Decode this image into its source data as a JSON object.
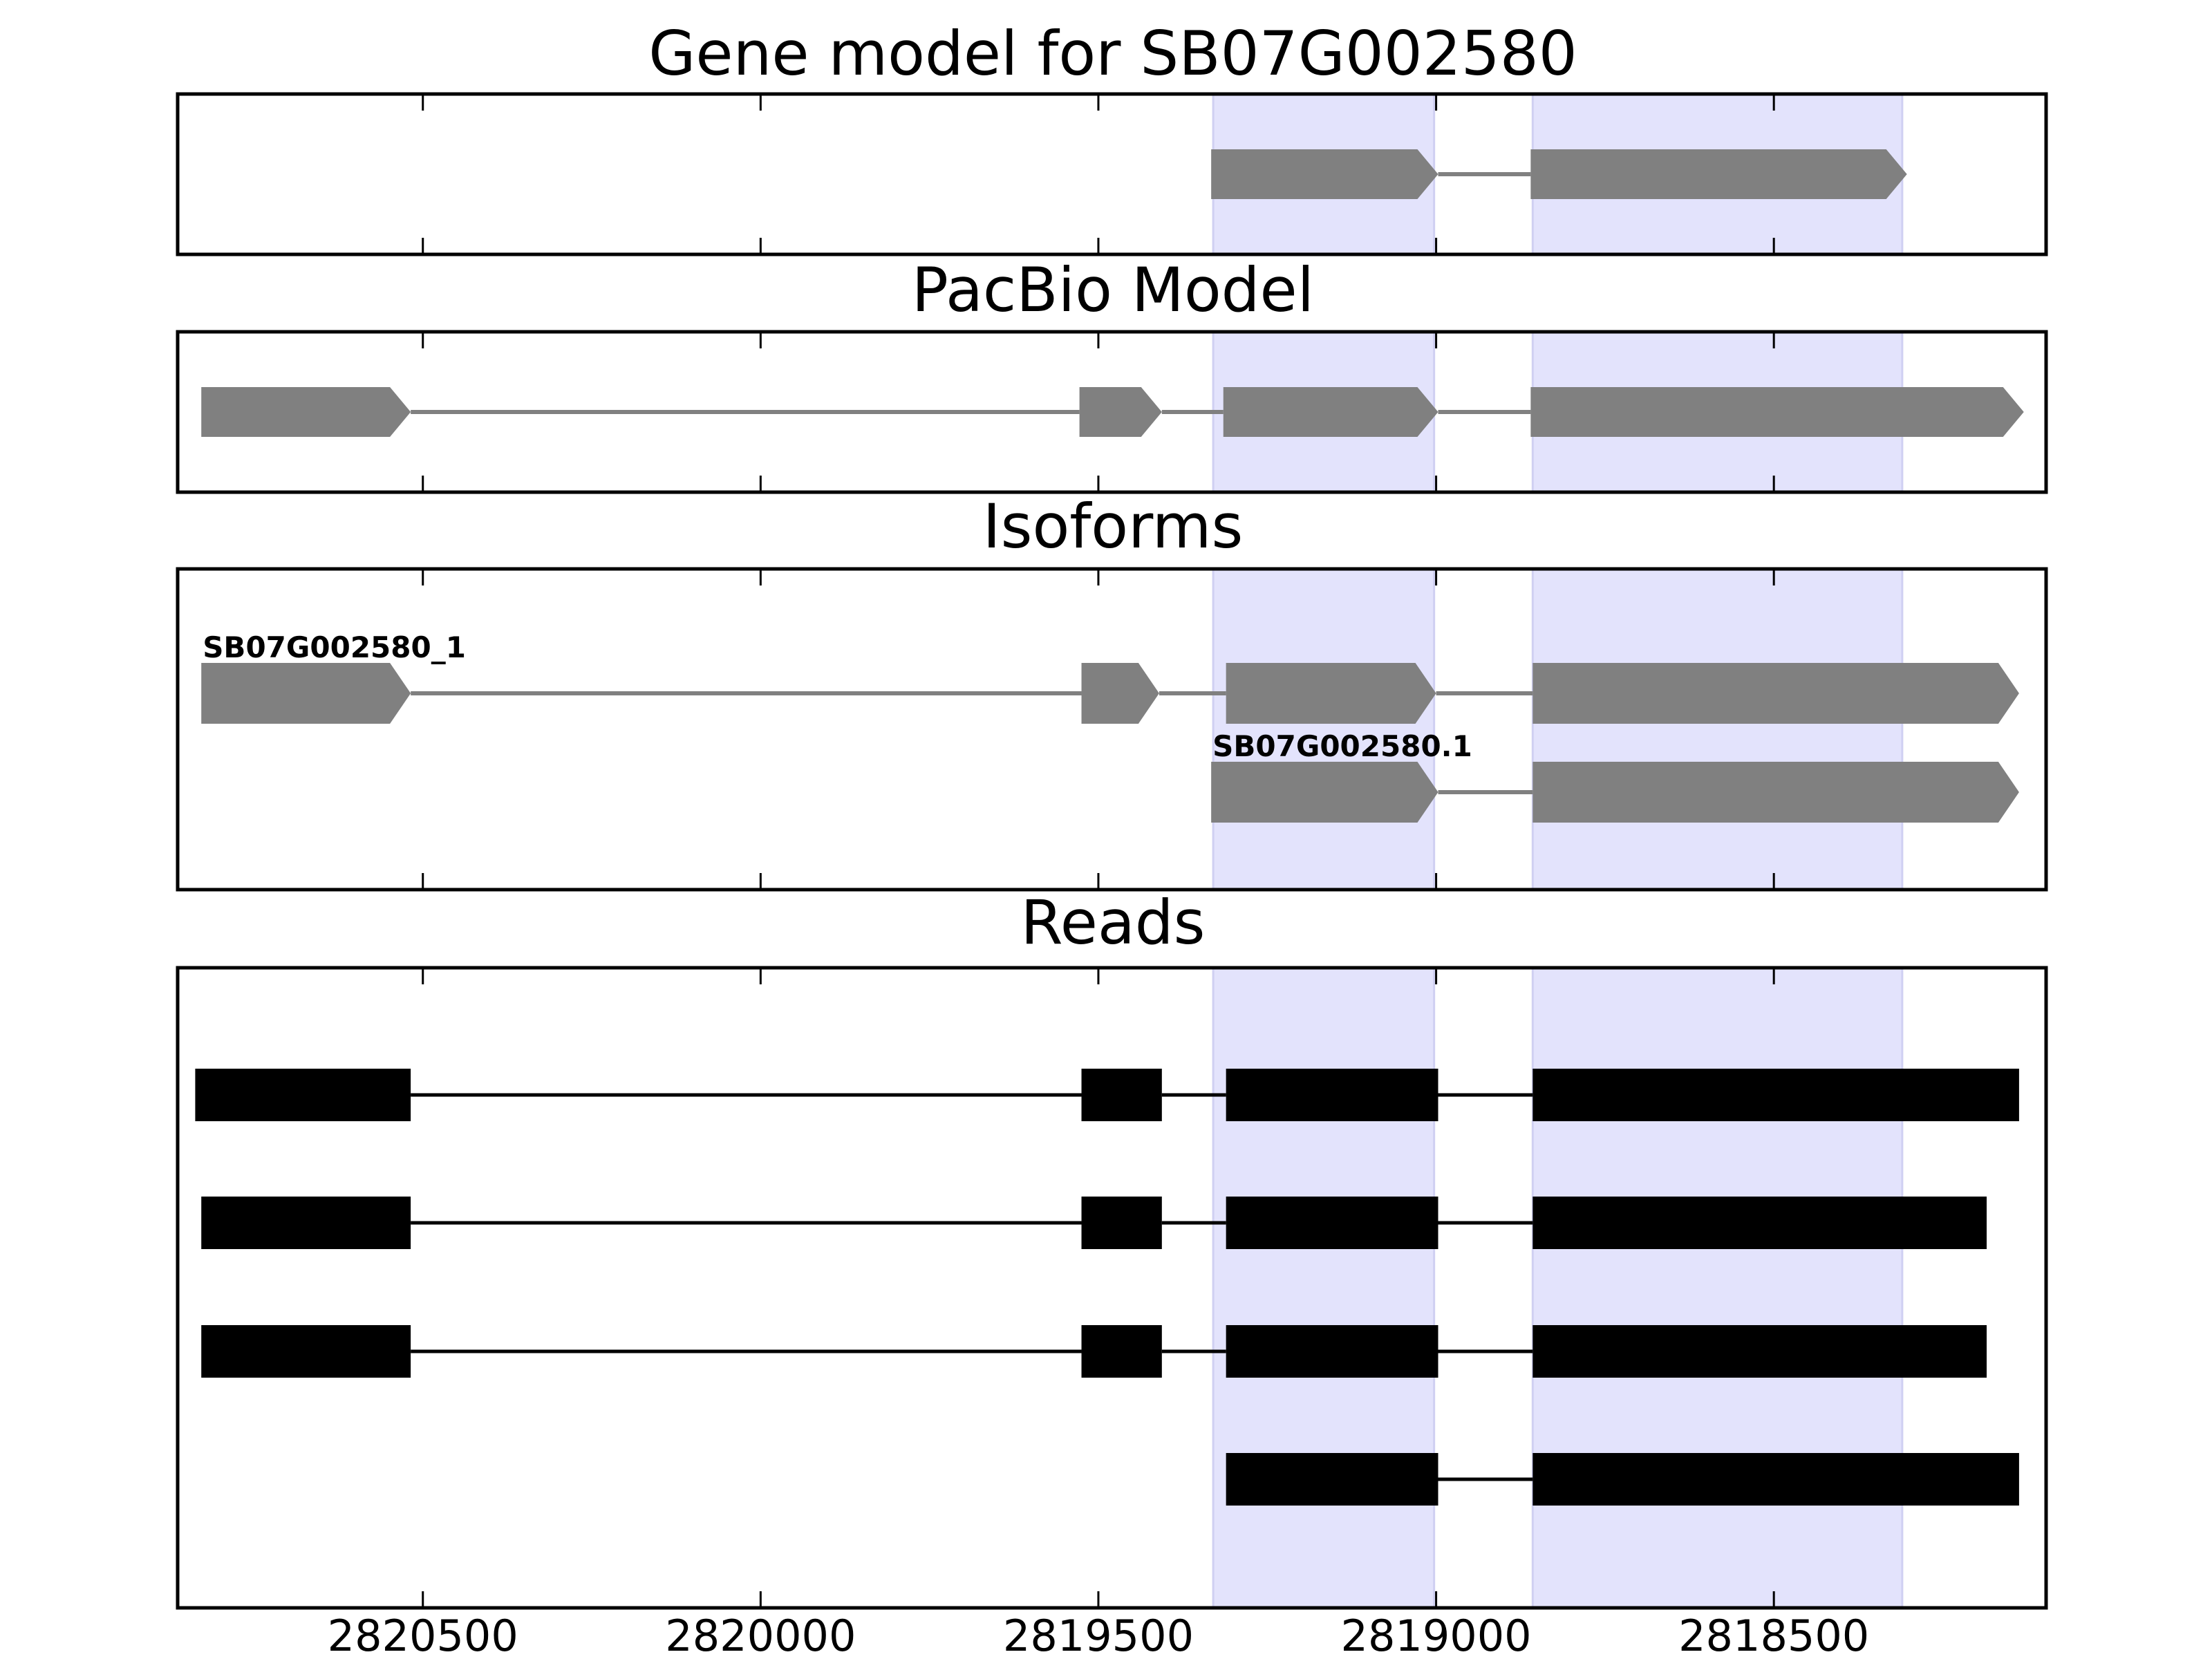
{
  "chart_data": {
    "type": "gene_track",
    "x_axis": {
      "ticks": [
        2820500,
        2820000,
        2819500,
        2819000,
        2818500
      ],
      "tick_labels": [
        "2820500",
        "2820000",
        "2819500",
        "2819000",
        "2818500"
      ],
      "xlim": [
        2820863,
        2818097
      ],
      "reversed": true
    },
    "highlight_regions": [
      [
        2819330,
        2819003
      ],
      [
        2818857,
        2818310
      ]
    ],
    "highlight_color": "#e3e3fc",
    "feature_color": "#808080",
    "read_color": "#000000",
    "panels": [
      {
        "title": "Gene model for SB07G002580",
        "kind": "model",
        "tracks": [
          {
            "label": "",
            "exons": [
              [
                2819333,
                2818997
              ],
              [
                2818860,
                2818303
              ]
            ]
          }
        ]
      },
      {
        "title": "PacBio Model",
        "kind": "model",
        "tracks": [
          {
            "label": "",
            "exons": [
              [
                2820828,
                2820518
              ],
              [
                2819528,
                2819406
              ],
              [
                2819315,
                2818997
              ],
              [
                2818860,
                2818130
              ]
            ]
          }
        ]
      },
      {
        "title": "Isoforms",
        "kind": "model",
        "tracks": [
          {
            "label": "SB07G002580_1",
            "exons": [
              [
                2820828,
                2820518
              ],
              [
                2819525,
                2819410
              ],
              [
                2819311,
                2819000
              ],
              [
                2818857,
                2818137
              ]
            ]
          },
          {
            "label": "SB07G002580.1",
            "exons": [
              [
                2819333,
                2818997
              ],
              [
                2818857,
                2818137
              ]
            ]
          }
        ]
      },
      {
        "title": "Reads",
        "kind": "reads",
        "tracks": [
          {
            "label": "",
            "exons": [
              [
                2820837,
                2820518
              ],
              [
                2819525,
                2819406
              ],
              [
                2819311,
                2818997
              ],
              [
                2818857,
                2818137
              ]
            ]
          },
          {
            "label": "",
            "exons": [
              [
                2820828,
                2820518
              ],
              [
                2819525,
                2819406
              ],
              [
                2819311,
                2818997
              ],
              [
                2818857,
                2818185
              ]
            ]
          },
          {
            "label": "",
            "exons": [
              [
                2820828,
                2820518
              ],
              [
                2819525,
                2819406
              ],
              [
                2819311,
                2818997
              ],
              [
                2818857,
                2818185
              ]
            ]
          },
          {
            "label": "",
            "exons": [
              [
                2819311,
                2818997
              ],
              [
                2818857,
                2818137
              ]
            ]
          }
        ]
      }
    ]
  }
}
